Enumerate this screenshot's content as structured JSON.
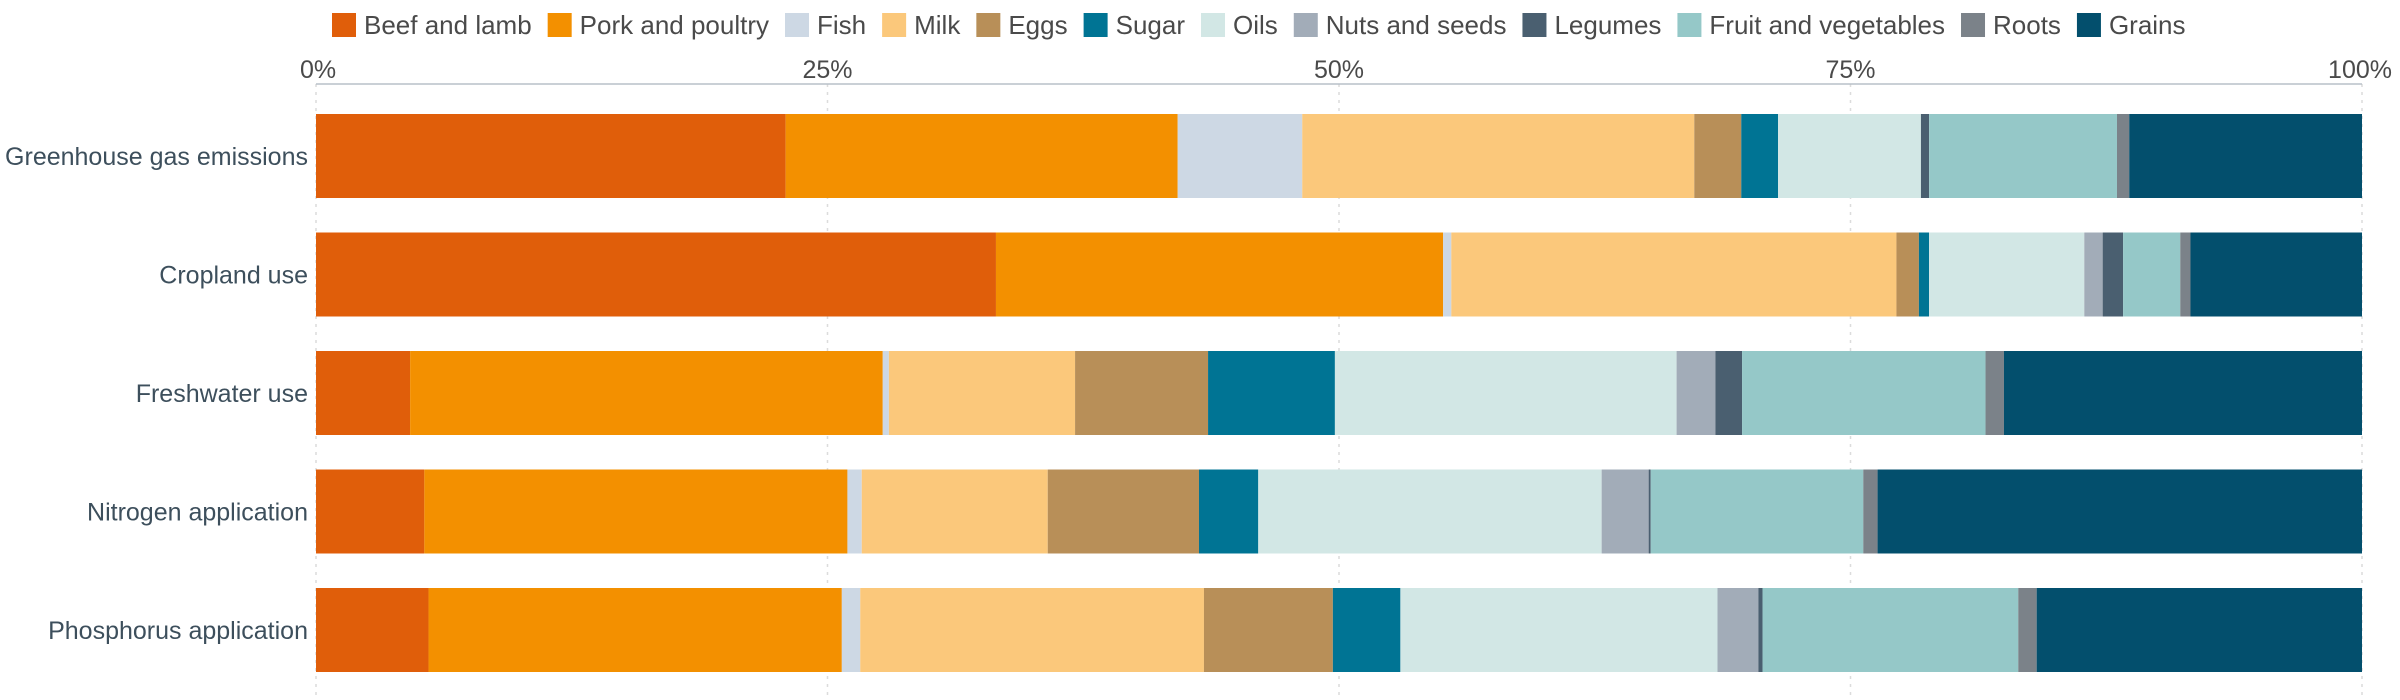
{
  "chart_data": {
    "type": "bar",
    "orientation": "horizontal",
    "stacked": "percent",
    "xlim": [
      0,
      100
    ],
    "x_ticks": [
      {
        "value": 0,
        "label": "0%"
      },
      {
        "value": 25,
        "label": "25%"
      },
      {
        "value": 50,
        "label": "50%"
      },
      {
        "value": 75,
        "label": "75%"
      },
      {
        "value": 100,
        "label": "100%"
      }
    ],
    "x_axis_position": "top",
    "grid": "vertical dotted",
    "legend_placement": "top",
    "categories": [
      "Greenhouse gas emissions",
      "Cropland use",
      "Freshwater use",
      "Nitrogen application",
      "Phosphorus application"
    ],
    "series": [
      {
        "name": "Beef and lamb",
        "color": "#e05e0a",
        "values": [
          23.0,
          33.3,
          4.6,
          5.3,
          5.5
        ]
      },
      {
        "name": "Pork and poultry",
        "color": "#f39000",
        "values": [
          19.2,
          21.9,
          23.1,
          20.7,
          20.2
        ]
      },
      {
        "name": "Fish",
        "color": "#cdd8e4",
        "values": [
          6.1,
          0.4,
          0.3,
          0.7,
          0.9
        ]
      },
      {
        "name": "Milk",
        "color": "#fbc87b",
        "values": [
          19.2,
          21.8,
          9.1,
          9.1,
          16.8
        ]
      },
      {
        "name": "Eggs",
        "color": "#b88f58",
        "values": [
          2.3,
          1.1,
          6.5,
          7.4,
          6.3
        ]
      },
      {
        "name": "Sugar",
        "color": "#007494",
        "values": [
          1.8,
          0.5,
          6.2,
          2.9,
          3.3
        ]
      },
      {
        "name": "Oils",
        "color": "#d2e7e5",
        "values": [
          7.0,
          7.6,
          16.7,
          16.8,
          15.5
        ]
      },
      {
        "name": "Nuts and seeds",
        "color": "#a2acb8",
        "values": [
          0.0,
          0.9,
          1.9,
          2.3,
          2.0
        ]
      },
      {
        "name": "Legumes",
        "color": "#4a5f70",
        "values": [
          0.4,
          1.0,
          1.3,
          0.1,
          0.2
        ]
      },
      {
        "name": "Fruit and vegetables",
        "color": "#95c8c8",
        "values": [
          9.2,
          2.8,
          11.9,
          10.4,
          12.5
        ]
      },
      {
        "name": "Roots",
        "color": "#7b8289",
        "values": [
          0.6,
          0.5,
          0.9,
          0.7,
          0.9
        ]
      },
      {
        "name": "Grains",
        "color": "#034f6d",
        "values": [
          11.4,
          8.4,
          17.5,
          23.7,
          15.9
        ]
      }
    ]
  }
}
